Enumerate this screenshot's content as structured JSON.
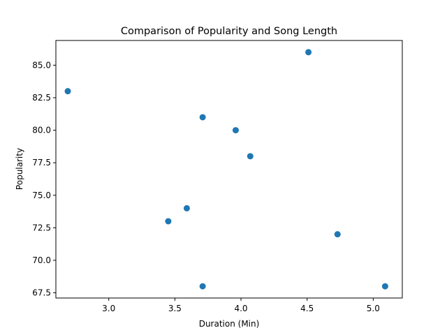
{
  "chart_data": {
    "type": "scatter",
    "title": "Comparison of Popularity and Song Length",
    "xlabel": "Duration (Min)",
    "ylabel": "Popularity",
    "xlim": [
      2.6,
      5.22
    ],
    "ylim": [
      67.1,
      86.9
    ],
    "xticks": [
      "3.0",
      "3.5",
      "4.0",
      "4.5",
      "5.0"
    ],
    "yticks": [
      "67.5",
      "70.0",
      "72.5",
      "75.0",
      "77.5",
      "80.0",
      "82.5",
      "85.0"
    ],
    "grid": false,
    "marker_color": "#1f77b4",
    "points": [
      {
        "x": 2.69,
        "y": 83
      },
      {
        "x": 3.45,
        "y": 73
      },
      {
        "x": 3.59,
        "y": 74
      },
      {
        "x": 3.71,
        "y": 81
      },
      {
        "x": 3.71,
        "y": 68
      },
      {
        "x": 3.96,
        "y": 80
      },
      {
        "x": 4.07,
        "y": 78
      },
      {
        "x": 4.51,
        "y": 86
      },
      {
        "x": 4.73,
        "y": 72
      },
      {
        "x": 5.09,
        "y": 68
      }
    ]
  }
}
